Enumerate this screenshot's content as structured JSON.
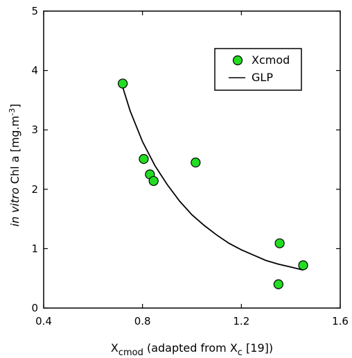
{
  "chart_data": {
    "type": "scatter",
    "xlim": [
      0.4,
      1.6
    ],
    "ylim": [
      0,
      5
    ],
    "xticks": [
      "0.4",
      "0.8",
      "1.2",
      "1.6"
    ],
    "yticks": [
      "0",
      "1",
      "2",
      "3",
      "4",
      "5"
    ],
    "grid": false,
    "legend_position": "top-right",
    "xlabel": {
      "prefix": "X",
      "prefix_sub": "cmod",
      "middle": " (adapted from X",
      "middle_sub": "c",
      "suffix": " [19])"
    },
    "ylabel": {
      "italic": "in vitro",
      "text": " Chl a [mg.m",
      "sup": "-3",
      "suffix": "]"
    },
    "series": [
      {
        "name": "Xcmod",
        "kind": "points",
        "color": "#22dd22",
        "edge_color": "#000000",
        "x": [
          0.72,
          0.805,
          0.83,
          0.845,
          1.015,
          1.35,
          1.355,
          1.45
        ],
        "y": [
          3.78,
          2.51,
          2.25,
          2.14,
          2.45,
          0.4,
          1.09,
          0.72
        ]
      },
      {
        "name": "GLP",
        "kind": "line",
        "color": "#000000",
        "x": [
          0.71,
          0.75,
          0.8,
          0.85,
          0.9,
          0.95,
          1.0,
          1.05,
          1.1,
          1.15,
          1.2,
          1.25,
          1.3,
          1.35,
          1.4,
          1.45
        ],
        "y": [
          3.85,
          3.32,
          2.8,
          2.4,
          2.08,
          1.8,
          1.57,
          1.39,
          1.23,
          1.09,
          0.98,
          0.89,
          0.8,
          0.74,
          0.69,
          0.64
        ]
      }
    ]
  }
}
